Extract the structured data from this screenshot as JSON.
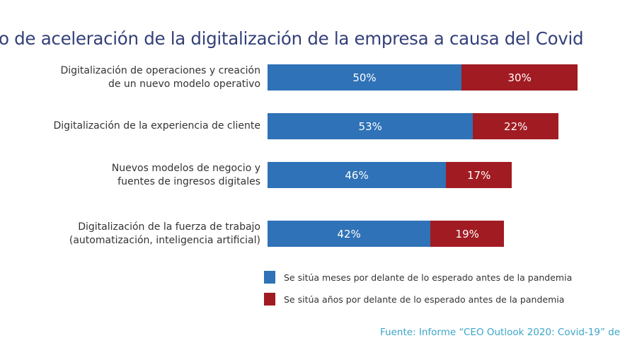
{
  "chart_data": {
    "type": "bar",
    "orientation": "horizontal",
    "stacked": true,
    "title": "o de aceleración de la digitalización de la empresa a causa del Covid",
    "categories": [
      "Digitalización de operaciones y creación\nde un nuevo modelo operativo",
      "Digitalización de la experiencia de cliente",
      "Nuevos modelos de negocio y\nfuentes de ingresos digitales",
      "Digitalización de la fuerza de trabajo\n(automatización, inteligencia artificial)"
    ],
    "series": [
      {
        "name": "Se sitúa meses por delante de lo esperado antes de la pandemia",
        "color": "#2f72b7",
        "values": [
          50,
          53,
          46,
          42
        ],
        "labels": [
          "50%",
          "53%",
          "46%",
          "42%"
        ]
      },
      {
        "name": "Se sitúa años por delante de lo esperado antes de la pandemia",
        "color": "#a11b22",
        "values": [
          30,
          22,
          17,
          19
        ],
        "labels": [
          "30%",
          "22%",
          "17%",
          "19%"
        ]
      }
    ],
    "grid": false,
    "legend": "bottom"
  },
  "source": "Fuente: Informe “CEO Outlook 2020: Covid-19” de"
}
